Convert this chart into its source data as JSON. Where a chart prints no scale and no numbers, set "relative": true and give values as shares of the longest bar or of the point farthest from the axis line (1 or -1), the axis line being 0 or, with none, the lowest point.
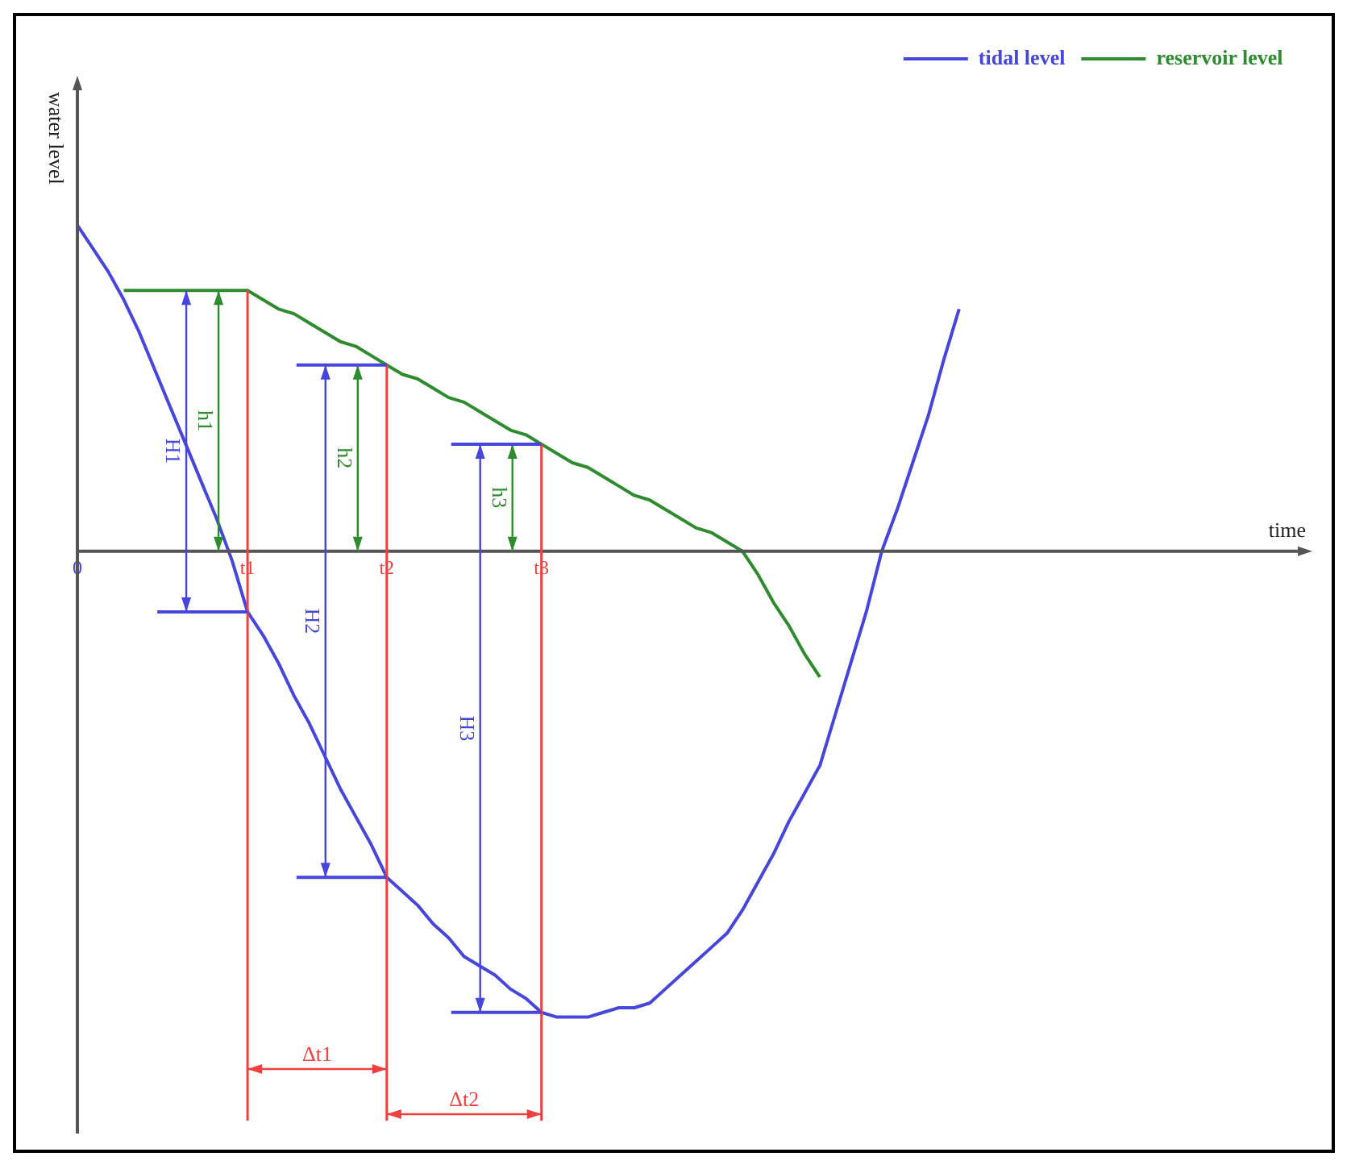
{
  "chart_data": {
    "type": "line",
    "relative": true,
    "xlabel": "time",
    "ylabel": "water level",
    "categories": [
      "0",
      null,
      null,
      null,
      null,
      null,
      null,
      null,
      null,
      null,
      null,
      "t1",
      null,
      null,
      null,
      null,
      null,
      null,
      null,
      null,
      "t2",
      null,
      null,
      null,
      null,
      null,
      null,
      null,
      null,
      null,
      "t3",
      null,
      null,
      null,
      null,
      null,
      null,
      null,
      null,
      null,
      null,
      null,
      null,
      null,
      null,
      null,
      null,
      null,
      null,
      null,
      null,
      null,
      null,
      null,
      null,
      null,
      null,
      null,
      null,
      null,
      null,
      null,
      null,
      null,
      null,
      null,
      null,
      null,
      null,
      null,
      null,
      null,
      null,
      null,
      null,
      null,
      null,
      null,
      null,
      null
    ],
    "series": [
      {
        "name": "tidal level",
        "color": "#4646dc",
        "values": [
          0.7,
          0.65,
          0.6,
          0.54,
          0.47,
          0.39,
          0.31,
          0.23,
          0.15,
          0.07,
          -0.02,
          -0.13,
          -0.18,
          -0.24,
          -0.31,
          -0.37,
          -0.44,
          -0.51,
          -0.57,
          -0.63,
          -0.7,
          -0.73,
          -0.76,
          -0.8,
          -0.83,
          -0.87,
          -0.89,
          -0.91,
          -0.94,
          -0.96,
          -0.99,
          -1,
          -1,
          -1,
          -0.99,
          -0.98,
          -0.98,
          -0.97,
          -0.94,
          -0.91,
          -0.88,
          -0.85,
          -0.82,
          -0.77,
          -0.71,
          -0.65,
          -0.58,
          -0.52,
          -0.46,
          -0.35,
          -0.24,
          -0.13,
          0,
          0.09,
          0.19,
          0.29,
          0.41,
          0.52,
          null,
          null,
          null,
          null,
          null,
          null,
          null,
          null,
          null,
          null,
          null,
          null,
          null,
          null,
          null,
          null,
          null,
          null,
          null,
          null,
          null,
          null
        ]
      },
      {
        "name": "reservoir level",
        "color": "#2e8b2e",
        "values": [
          null,
          null,
          null,
          0.56,
          0.56,
          0.56,
          0.56,
          0.56,
          0.56,
          0.56,
          0.56,
          0.56,
          0.54,
          0.52,
          0.51,
          0.49,
          0.47,
          0.45,
          0.44,
          0.42,
          0.4,
          0.38,
          0.37,
          0.35,
          0.33,
          0.32,
          0.3,
          0.28,
          0.26,
          0.25,
          0.23,
          0.21,
          0.19,
          0.18,
          0.16,
          0.14,
          0.12,
          0.11,
          0.09,
          0.07,
          0.05,
          0.04,
          0.02,
          0,
          -0.05,
          -0.11,
          -0.16,
          -0.22,
          -0.27,
          null,
          null,
          null,
          null,
          null,
          null,
          null,
          null,
          null,
          null,
          null,
          null,
          null,
          null,
          null,
          null,
          null,
          null,
          null,
          null,
          null,
          null,
          null,
          null,
          null,
          null,
          null,
          null,
          null,
          null,
          null
        ]
      }
    ],
    "ref_lines": [
      {
        "axis": "x",
        "value": "t1",
        "color": "#f04040"
      },
      {
        "axis": "x",
        "value": "t2",
        "color": "#f04040"
      },
      {
        "axis": "x",
        "value": "t3",
        "color": "#f04040"
      }
    ],
    "annotations": [
      "h1",
      "H1",
      "h2",
      "H2",
      "h3",
      "H3",
      "Δt1",
      "Δt2"
    ],
    "legend": "top right"
  }
}
